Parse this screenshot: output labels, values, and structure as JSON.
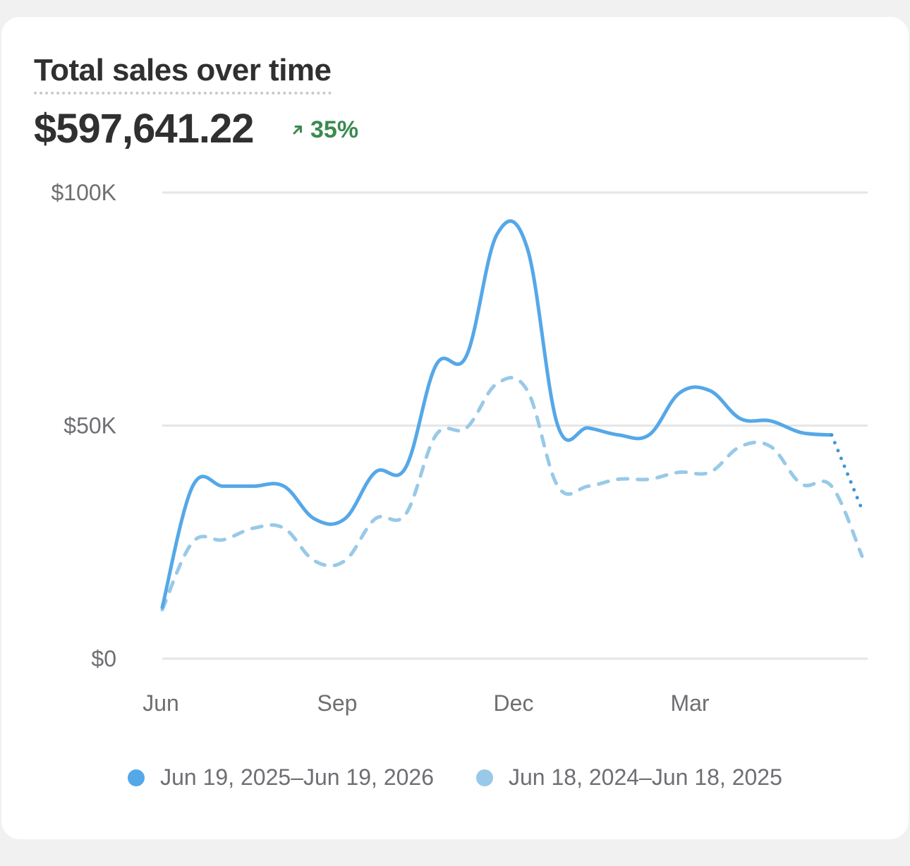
{
  "card": {
    "title": "Total sales over time",
    "total": "$597,641.22",
    "change": "35%",
    "change_icon": "arrow-up-right-icon",
    "change_color": "#3a8a4f"
  },
  "chart_data": {
    "type": "line",
    "title": "Total sales over time",
    "xlabel": "",
    "ylabel": "",
    "ylim": [
      0,
      100000
    ],
    "y_ticks": [
      "$0",
      "$50K",
      "$100K"
    ],
    "y_tick_values": [
      0,
      50000,
      100000
    ],
    "x_ticks": [
      "Jun",
      "Sep",
      "Dec",
      "Mar"
    ],
    "grid": true,
    "legend_position": "bottom",
    "series": [
      {
        "name": "Jun 19, 2025–Jun 19, 2026",
        "color": "#55a8e8",
        "style": "solid",
        "values": [
          11000,
          37000,
          37000,
          37000,
          37000,
          30000,
          30000,
          40000,
          41000,
          63000,
          65000,
          91000,
          88000,
          50000,
          49500,
          48000,
          48000,
          57000,
          57500,
          51500,
          51000,
          48500,
          48000,
          32000
        ],
        "dotted_from_index": 22
      },
      {
        "name": "Jun 18, 2024–Jun 18, 2025",
        "color": "#98c9e8",
        "style": "dashed",
        "values": [
          10500,
          25000,
          25500,
          28000,
          28000,
          21000,
          21000,
          30000,
          31000,
          48000,
          49500,
          59000,
          57500,
          37000,
          37000,
          38500,
          38500,
          40000,
          40000,
          45500,
          45500,
          37500,
          37000,
          22000
        ]
      }
    ]
  }
}
